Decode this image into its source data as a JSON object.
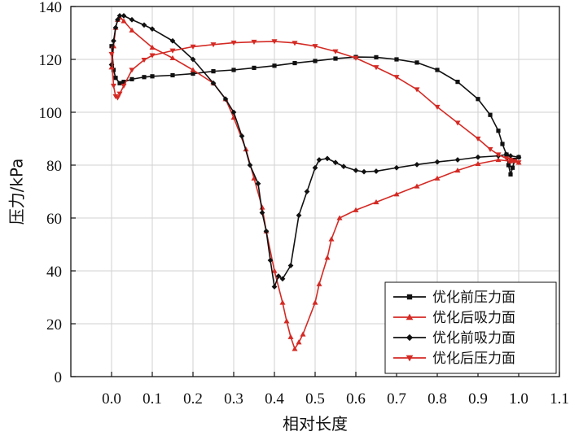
{
  "chart_data": {
    "type": "line",
    "xlabel": "相对长度",
    "ylabel": "压力/kPa",
    "xlim": [
      -0.1,
      1.1
    ],
    "ylim": [
      0,
      140
    ],
    "xticks": [
      "0.0",
      "0.1",
      "0.2",
      "0.3",
      "0.4",
      "0.5",
      "0.6",
      "0.7",
      "0.8",
      "0.9",
      "1.0",
      "1.1"
    ],
    "yticks": [
      "0",
      "20",
      "40",
      "60",
      "80",
      "100",
      "120",
      "140"
    ],
    "grid": true,
    "legend_position": "bottom-right",
    "series": [
      {
        "name": "优化前压力面",
        "color": "#111111",
        "marker": "square",
        "points": [
          [
            0.0,
            125
          ],
          [
            0.005,
            116
          ],
          [
            0.01,
            113
          ],
          [
            0.02,
            111
          ],
          [
            0.03,
            111.5
          ],
          [
            0.05,
            112.5
          ],
          [
            0.08,
            113.3
          ],
          [
            0.1,
            113.6
          ],
          [
            0.15,
            114
          ],
          [
            0.2,
            114.6
          ],
          [
            0.25,
            115.5
          ],
          [
            0.3,
            116
          ],
          [
            0.35,
            116.8
          ],
          [
            0.4,
            117.6
          ],
          [
            0.45,
            118.6
          ],
          [
            0.5,
            119.4
          ],
          [
            0.55,
            120.3
          ],
          [
            0.6,
            120.9
          ],
          [
            0.65,
            120.8
          ],
          [
            0.7,
            120
          ],
          [
            0.75,
            118.8
          ],
          [
            0.8,
            116
          ],
          [
            0.85,
            111.5
          ],
          [
            0.9,
            105
          ],
          [
            0.93,
            99
          ],
          [
            0.95,
            93
          ],
          [
            0.96,
            88
          ],
          [
            0.97,
            84
          ],
          [
            0.975,
            80
          ],
          [
            0.98,
            76.5
          ],
          [
            0.985,
            79
          ],
          [
            0.99,
            82
          ],
          [
            1.0,
            83
          ]
        ]
      },
      {
        "name": "优化后吸力面",
        "color": "#d42a24",
        "marker": "triangle-up",
        "points": [
          [
            0.0,
            117
          ],
          [
            0.005,
            125
          ],
          [
            0.01,
            132
          ],
          [
            0.015,
            135
          ],
          [
            0.02,
            136
          ],
          [
            0.03,
            134.5
          ],
          [
            0.05,
            131
          ],
          [
            0.1,
            124.5
          ],
          [
            0.15,
            120.5
          ],
          [
            0.2,
            116
          ],
          [
            0.25,
            111
          ],
          [
            0.28,
            105
          ],
          [
            0.3,
            98
          ],
          [
            0.33,
            86
          ],
          [
            0.35,
            75
          ],
          [
            0.37,
            64
          ],
          [
            0.38,
            55
          ],
          [
            0.4,
            40
          ],
          [
            0.42,
            28
          ],
          [
            0.43,
            21
          ],
          [
            0.44,
            15
          ],
          [
            0.45,
            10.5
          ],
          [
            0.46,
            13
          ],
          [
            0.47,
            16
          ],
          [
            0.5,
            28
          ],
          [
            0.51,
            35
          ],
          [
            0.53,
            45
          ],
          [
            0.54,
            52
          ],
          [
            0.56,
            60
          ],
          [
            0.6,
            63
          ],
          [
            0.65,
            66
          ],
          [
            0.7,
            69
          ],
          [
            0.75,
            72
          ],
          [
            0.8,
            75
          ],
          [
            0.85,
            78
          ],
          [
            0.9,
            80.5
          ],
          [
            0.95,
            82
          ],
          [
            0.98,
            81.5
          ],
          [
            1.0,
            81
          ]
        ]
      },
      {
        "name": "优化前吸力面",
        "color": "#111111",
        "marker": "diamond",
        "points": [
          [
            0.0,
            118
          ],
          [
            0.005,
            127
          ],
          [
            0.01,
            132
          ],
          [
            0.015,
            135
          ],
          [
            0.02,
            136.5
          ],
          [
            0.03,
            136.5
          ],
          [
            0.05,
            135
          ],
          [
            0.08,
            133
          ],
          [
            0.1,
            131.5
          ],
          [
            0.15,
            127
          ],
          [
            0.2,
            120
          ],
          [
            0.25,
            111
          ],
          [
            0.28,
            105
          ],
          [
            0.3,
            100
          ],
          [
            0.32,
            91
          ],
          [
            0.34,
            80
          ],
          [
            0.36,
            73
          ],
          [
            0.37,
            62
          ],
          [
            0.38,
            55
          ],
          [
            0.39,
            44
          ],
          [
            0.4,
            34
          ],
          [
            0.41,
            38
          ],
          [
            0.42,
            37
          ],
          [
            0.44,
            42
          ],
          [
            0.46,
            61
          ],
          [
            0.48,
            70
          ],
          [
            0.5,
            79
          ],
          [
            0.51,
            82
          ],
          [
            0.53,
            82.5
          ],
          [
            0.55,
            81
          ],
          [
            0.57,
            79.5
          ],
          [
            0.6,
            78
          ],
          [
            0.62,
            77.5
          ],
          [
            0.65,
            77.7
          ],
          [
            0.7,
            79
          ],
          [
            0.75,
            80.2
          ],
          [
            0.8,
            81.2
          ],
          [
            0.85,
            82
          ],
          [
            0.9,
            83
          ],
          [
            0.95,
            83.5
          ],
          [
            0.97,
            84
          ],
          [
            0.98,
            83.5
          ],
          [
            1.0,
            83
          ]
        ]
      },
      {
        "name": "优化后压力面",
        "color": "#d42a24",
        "marker": "triangle-down",
        "points": [
          [
            0.0,
            122
          ],
          [
            0.005,
            110
          ],
          [
            0.01,
            106
          ],
          [
            0.015,
            105.5
          ],
          [
            0.02,
            107
          ],
          [
            0.03,
            110
          ],
          [
            0.05,
            116
          ],
          [
            0.08,
            119.8
          ],
          [
            0.1,
            121.5
          ],
          [
            0.15,
            123.3
          ],
          [
            0.2,
            124.8
          ],
          [
            0.25,
            125.6
          ],
          [
            0.3,
            126.3
          ],
          [
            0.35,
            126.6
          ],
          [
            0.4,
            126.8
          ],
          [
            0.45,
            126.2
          ],
          [
            0.5,
            125
          ],
          [
            0.55,
            123
          ],
          [
            0.6,
            120.5
          ],
          [
            0.65,
            117
          ],
          [
            0.7,
            113.3
          ],
          [
            0.75,
            108.6
          ],
          [
            0.8,
            102
          ],
          [
            0.85,
            96
          ],
          [
            0.9,
            90
          ],
          [
            0.93,
            86
          ],
          [
            0.95,
            84
          ],
          [
            0.97,
            82.5
          ],
          [
            0.98,
            82
          ],
          [
            0.99,
            81.5
          ],
          [
            1.0,
            81
          ]
        ]
      }
    ]
  }
}
